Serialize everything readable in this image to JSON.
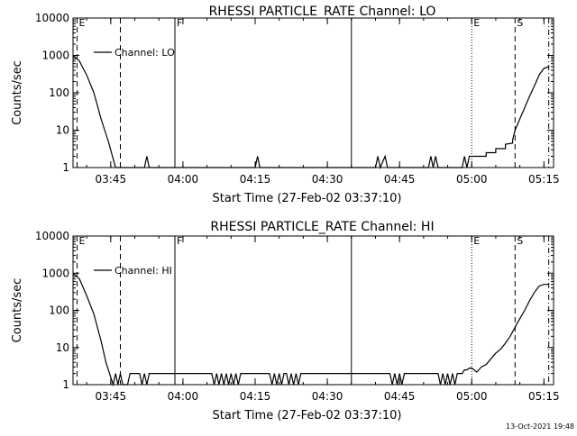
{
  "chart_data": [
    {
      "type": "line",
      "title": "RHESSI PARTICLE_RATE Channel: LO",
      "xlabel": "Start Time (27-Feb-02 03:37:10)",
      "ylabel": "Counts/sec",
      "y_scale": "log",
      "ylim": [
        1,
        10000
      ],
      "xlim": [
        "03:37:10",
        "05:17:00"
      ],
      "x_ticks": [
        "03:45",
        "04:00",
        "04:15",
        "04:30",
        "04:45",
        "05:00",
        "05:15"
      ],
      "y_ticks": [
        "1",
        "10",
        "100",
        "1000",
        "10000"
      ],
      "legend": {
        "position": "top-left",
        "entries": [
          "Channel: LO"
        ]
      },
      "markers": [
        {
          "label": "E",
          "time": "03:38:00",
          "style": "dashed"
        },
        {
          "label": "",
          "time": "03:47:00",
          "style": "dashed"
        },
        {
          "label": "F",
          "time": "03:58:20",
          "style": "solid"
        },
        {
          "label": "",
          "time": "04:35:00",
          "style": "solid"
        },
        {
          "label": "E",
          "time": "05:00:00",
          "style": "dotted"
        },
        {
          "label": "S",
          "time": "05:09:00",
          "style": "dashed"
        },
        {
          "label": "",
          "time": "05:16:00",
          "style": "dashdot"
        }
      ],
      "series": [
        {
          "name": "Channel: LO",
          "x": [
            "03:37:10",
            "03:38:30",
            "03:40:00",
            "03:41:30",
            "03:43:00",
            "03:44:30",
            "03:46:00",
            "03:46:10",
            "03:52:00",
            "03:52:30",
            "03:53:00",
            "04:15:00",
            "04:15:30",
            "04:16:00",
            "04:40:00",
            "04:40:30",
            "04:41:00",
            "04:42:00",
            "04:42:30",
            "04:43:00",
            "04:51:00",
            "04:51:30",
            "04:52:00",
            "04:52:30",
            "04:53:00",
            "04:58:00",
            "04:58:30",
            "04:59:00",
            "04:59:30",
            "05:00:00",
            "05:03:00",
            "05:03:00",
            "05:05:00",
            "05:05:00",
            "05:07:00",
            "05:07:00",
            "05:08:30",
            "05:08:30",
            "05:09:00",
            "05:10:00",
            "05:11:00",
            "05:12:00",
            "05:13:00",
            "05:14:00",
            "05:15:00",
            "05:16:00"
          ],
          "y": [
            1000,
            700,
            300,
            100,
            20,
            5,
            1,
            1,
            1,
            2,
            1,
            1,
            2,
            1,
            1,
            2,
            1,
            2,
            1,
            1,
            1,
            2,
            1,
            2,
            1,
            1,
            2,
            1,
            2,
            2,
            2,
            2.5,
            2.5,
            3.2,
            3.2,
            4.2,
            4.5,
            5.5,
            10,
            20,
            40,
            80,
            150,
            300,
            450,
            500
          ]
        }
      ]
    },
    {
      "type": "line",
      "title": "RHESSI PARTICLE_RATE Channel: HI",
      "xlabel": "Start Time (27-Feb-02 03:37:10)",
      "ylabel": "Counts/sec",
      "y_scale": "log",
      "ylim": [
        1,
        10000
      ],
      "xlim": [
        "03:37:10",
        "05:17:00"
      ],
      "x_ticks": [
        "03:45",
        "04:00",
        "04:15",
        "04:30",
        "04:45",
        "05:00",
        "05:15"
      ],
      "y_ticks": [
        "1",
        "10",
        "100",
        "1000",
        "10000"
      ],
      "legend": {
        "position": "top-left",
        "entries": [
          "Channel: HI"
        ]
      },
      "markers": [
        {
          "label": "E",
          "time": "03:38:00",
          "style": "dashed"
        },
        {
          "label": "",
          "time": "03:47:00",
          "style": "dashed"
        },
        {
          "label": "F",
          "time": "03:58:20",
          "style": "solid"
        },
        {
          "label": "",
          "time": "04:35:00",
          "style": "solid"
        },
        {
          "label": "E",
          "time": "05:00:00",
          "style": "dotted"
        },
        {
          "label": "S",
          "time": "05:09:00",
          "style": "dashed"
        },
        {
          "label": "",
          "time": "05:16:00",
          "style": "dashdot"
        }
      ],
      "series": [
        {
          "name": "Channel: HI",
          "x": [
            "03:37:10",
            "03:38:30",
            "03:40:00",
            "03:41:30",
            "03:43:00",
            "03:44:00",
            "03:45:00",
            "03:45:30",
            "03:46:00",
            "03:46:30",
            "03:47:00",
            "03:47:30",
            "03:48:00",
            "03:48:30",
            "03:49:00",
            "03:51:00",
            "03:51:30",
            "03:52:00",
            "03:52:30",
            "03:53:00",
            "03:53:30",
            "03:58:20",
            "03:58:40",
            "04:06:00",
            "04:06:30",
            "04:07:00",
            "04:07:30",
            "04:08:00",
            "04:08:30",
            "04:09:00",
            "04:09:30",
            "04:10:00",
            "04:10:30",
            "04:11:00",
            "04:11:30",
            "04:12:00",
            "04:12:30",
            "04:13:00",
            "04:18:00",
            "04:18:30",
            "04:19:00",
            "04:19:30",
            "04:20:00",
            "04:20:30",
            "04:21:00",
            "04:21:30",
            "04:22:00",
            "04:22:30",
            "04:23:00",
            "04:23:30",
            "04:24:00",
            "04:24:30",
            "04:35:00",
            "04:35:30",
            "04:43:00",
            "04:43:30",
            "04:44:00",
            "04:44:30",
            "04:45:00",
            "04:45:30",
            "04:46:00",
            "04:53:00",
            "04:53:30",
            "04:54:00",
            "04:54:30",
            "04:55:00",
            "04:55:30",
            "04:56:00",
            "04:56:30",
            "04:57:00",
            "04:57:30",
            "04:58:00",
            "04:58:30",
            "04:59:00",
            "04:59:30",
            "05:00:00",
            "05:00:30",
            "05:01:00",
            "05:01:30",
            "05:02:00",
            "05:03:00",
            "05:04:00",
            "05:05:00",
            "05:06:00",
            "05:07:00",
            "05:08:00",
            "05:09:00",
            "05:10:00",
            "05:11:00",
            "05:12:00",
            "05:13:00",
            "05:14:00",
            "05:15:00",
            "05:16:00"
          ],
          "y": [
            1000,
            700,
            250,
            80,
            15,
            4,
            1.6,
            1,
            2,
            1,
            2,
            1,
            1,
            1,
            2,
            2,
            1,
            2,
            1,
            2,
            2,
            2,
            2,
            2,
            1,
            2,
            1,
            2,
            1,
            2,
            1,
            2,
            1,
            2,
            1,
            2,
            2,
            2,
            2,
            1,
            2,
            1,
            2,
            1,
            2,
            2,
            1,
            2,
            1,
            2,
            1,
            2,
            2,
            2,
            2,
            1,
            2,
            1,
            2,
            1,
            2,
            2,
            1,
            2,
            1,
            2,
            1,
            2,
            1,
            2,
            2,
            2,
            2.5,
            2.5,
            2.8,
            2.8,
            2.5,
            2.2,
            2.5,
            3,
            3.5,
            5,
            7,
            9,
            13,
            20,
            35,
            60,
            100,
            180,
            300,
            450,
            500,
            500
          ]
        }
      ]
    }
  ],
  "footer": {
    "timestamp": "13-Oct-2021 19:48"
  }
}
